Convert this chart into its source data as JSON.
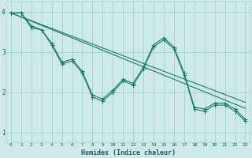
{
  "xlabel": "Humidex (Indice chaleur)",
  "xlim": [
    -0.5,
    23.5
  ],
  "ylim": [
    0.75,
    4.25
  ],
  "xticks": [
    0,
    1,
    2,
    3,
    4,
    5,
    6,
    7,
    8,
    9,
    10,
    11,
    12,
    13,
    14,
    15,
    16,
    17,
    18,
    19,
    20,
    21,
    22,
    23
  ],
  "yticks": [
    1,
    2,
    3,
    4
  ],
  "bg_color": "#ceeae6",
  "grid_color": "#a8d4cf",
  "line_color": "#1a7a6e",
  "line1_x": [
    0,
    1,
    2,
    3,
    4,
    5,
    6,
    7,
    8,
    9,
    10,
    11,
    12,
    13,
    14,
    15,
    16,
    17,
    18,
    19,
    20,
    21,
    22,
    23
  ],
  "line1_y": [
    3.97,
    3.97,
    3.65,
    3.55,
    3.22,
    2.75,
    2.82,
    2.52,
    1.93,
    1.83,
    2.05,
    2.32,
    2.22,
    2.62,
    3.18,
    3.35,
    3.12,
    2.48,
    1.63,
    1.58,
    1.73,
    1.73,
    1.58,
    1.33
  ],
  "line2_x": [
    0,
    1,
    2,
    3,
    4,
    5,
    6,
    7,
    8,
    9,
    10,
    11,
    12,
    13,
    14,
    15,
    16,
    17,
    18,
    19,
    20,
    21,
    22,
    23
  ],
  "line2_y": [
    3.97,
    3.97,
    3.6,
    3.55,
    3.18,
    2.7,
    2.78,
    2.48,
    1.88,
    1.78,
    2.0,
    2.28,
    2.18,
    2.58,
    3.13,
    3.3,
    3.08,
    2.43,
    1.58,
    1.53,
    1.68,
    1.68,
    1.53,
    1.28
  ],
  "line3_x": [
    0,
    23
  ],
  "line3_y": [
    3.97,
    1.6
  ],
  "line4_x": [
    0,
    23
  ],
  "line4_y": [
    3.97,
    1.75
  ]
}
